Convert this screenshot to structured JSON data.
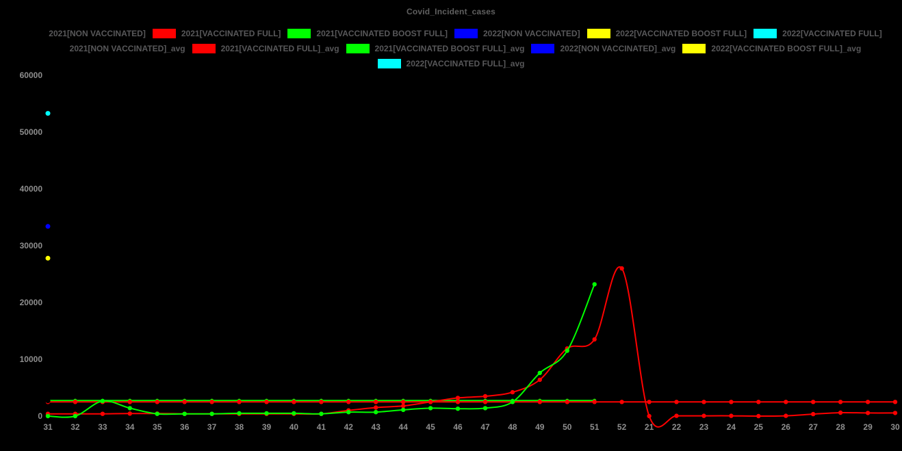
{
  "chart_data": {
    "type": "line",
    "title": "Covid_Incident_cases",
    "background_color": "#000000",
    "xlabel": "",
    "ylabel": "",
    "ylim": [
      0,
      60000
    ],
    "y_ticks": [
      0,
      10000,
      20000,
      30000,
      40000,
      50000,
      60000
    ],
    "grid": "off",
    "x_categories": [
      "31",
      "32",
      "33",
      "34",
      "35",
      "36",
      "37",
      "38",
      "39",
      "40",
      "41",
      "42",
      "43",
      "44",
      "45",
      "46",
      "47",
      "48",
      "49",
      "50",
      "51",
      "52",
      "21",
      "22",
      "23",
      "24",
      "25",
      "26",
      "27",
      "28",
      "29",
      "30"
    ],
    "legend_position": "top",
    "legend_rows": [
      [
        {
          "label": "2021[NON VACCINATED]",
          "color": "#000000"
        },
        {
          "label": "2021[VACCINATED FULL]",
          "color": "#ff0000"
        },
        {
          "label": "2021[VACCINATED BOOST FULL]",
          "color": "#00ff00"
        },
        {
          "label": "2022[NON VACCINATED]",
          "color": "#0000ff"
        },
        {
          "label": "2022[VACCINATED BOOST FULL]",
          "color": "#ffff00"
        },
        {
          "label": "2022[VACCINATED FULL]",
          "color": "#00ffff"
        }
      ],
      [
        {
          "label": "2021[NON VACCINATED]_avg",
          "color": "#000000"
        },
        {
          "label": "2021[VACCINATED FULL]_avg",
          "color": "#ff0000"
        },
        {
          "label": "2021[VACCINATED BOOST FULL]_avg",
          "color": "#00ff00"
        },
        {
          "label": "2022[NON VACCINATED]_avg",
          "color": "#0000ff"
        },
        {
          "label": "2022[VACCINATED BOOST FULL]_avg",
          "color": "#ffff00"
        }
      ],
      [
        {
          "label": "2022[VACCINATED FULL]_avg",
          "color": "#00ffff"
        }
      ]
    ],
    "series": [
      {
        "name": "2021[VACCINATED BOOST FULL]_avg",
        "color": "#00ff00",
        "role": "average-line",
        "dot_radius": 2.6,
        "values": [
          2750,
          2750,
          2750,
          2750,
          2750,
          2750,
          2750,
          2750,
          2750,
          2750,
          2750,
          2750,
          2750,
          2750,
          2750,
          2750,
          2750,
          2750,
          2750,
          2750,
          2750,
          null,
          null,
          null,
          null,
          null,
          null,
          null,
          null,
          null,
          null,
          null
        ]
      },
      {
        "name": "2021[VACCINATED FULL]_avg",
        "color": "#ff0000",
        "role": "average-line",
        "dot_radius": 3.2,
        "values": [
          2500,
          2500,
          2500,
          2500,
          2500,
          2500,
          2500,
          2500,
          2500,
          2500,
          2500,
          2500,
          2500,
          2500,
          2500,
          2500,
          2500,
          2500,
          2500,
          2500,
          2500,
          2500,
          2500,
          2500,
          2500,
          2500,
          2500,
          2500,
          2500,
          2500,
          2500,
          2500
        ]
      },
      {
        "name": "2021[NON VACCINATED]_avg",
        "color": "#000000",
        "role": "average-line-dark-dot",
        "dot_radius": 3.6,
        "values": [
          2700,
          null,
          null,
          null,
          null,
          null,
          null,
          null,
          null,
          null,
          null,
          null,
          null,
          null,
          null,
          null,
          null,
          null,
          null,
          null,
          null,
          null,
          null,
          null,
          null,
          null,
          null,
          null,
          null,
          null,
          null,
          null
        ]
      },
      {
        "name": "2021[VACCINATED FULL]",
        "color": "#ff0000",
        "role": "weekly-cases",
        "dot_radius": 3.2,
        "values": [
          400,
          400,
          400,
          450,
          450,
          400,
          400,
          400,
          400,
          400,
          400,
          1000,
          1500,
          1800,
          2500,
          3200,
          3500,
          4200,
          6400,
          11900,
          13500,
          26000,
          0,
          50,
          50,
          50,
          0,
          50,
          350,
          600,
          550,
          550
        ]
      },
      {
        "name": "2021[VACCINATED BOOST FULL]",
        "color": "#00ff00",
        "role": "weekly-cases",
        "dot_radius": 3.2,
        "values": [
          0,
          0,
          2650,
          1400,
          400,
          400,
          400,
          500,
          500,
          500,
          400,
          700,
          700,
          1100,
          1400,
          1300,
          1400,
          2500,
          7600,
          11500,
          23200,
          null,
          null,
          null,
          null,
          null,
          null,
          null,
          null,
          null,
          null,
          null
        ]
      },
      {
        "name": "2022[NON VACCINATED]",
        "color": "#0000ff",
        "role": "weekly-cases",
        "dot_radius": 3.5,
        "values": [
          33400,
          null,
          null,
          null,
          null,
          null,
          null,
          null,
          null,
          null,
          null,
          null,
          null,
          null,
          null,
          null,
          null,
          null,
          null,
          null,
          null,
          null,
          null,
          null,
          null,
          null,
          null,
          null,
          null,
          null,
          null,
          null
        ]
      },
      {
        "name": "2022[VACCINATED BOOST FULL]",
        "color": "#ffff00",
        "role": "weekly-cases",
        "dot_radius": 3.5,
        "values": [
          27800,
          null,
          null,
          null,
          null,
          null,
          null,
          null,
          null,
          null,
          null,
          null,
          null,
          null,
          null,
          null,
          null,
          null,
          null,
          null,
          null,
          null,
          null,
          null,
          null,
          null,
          null,
          null,
          null,
          null,
          null,
          null
        ]
      },
      {
        "name": "2022[VACCINATED FULL]",
        "color": "#00ffff",
        "role": "weekly-cases",
        "dot_radius": 3.5,
        "values": [
          53300,
          null,
          null,
          null,
          null,
          null,
          null,
          null,
          null,
          null,
          null,
          null,
          null,
          null,
          null,
          null,
          null,
          null,
          null,
          null,
          null,
          null,
          null,
          null,
          null,
          null,
          null,
          null,
          null,
          null,
          null,
          null
        ]
      }
    ],
    "notes": "2021[NON VACCINATED] series renders black on black background (legend swatch appears empty)."
  },
  "axis_style": {
    "label_color": "#8f8f8f"
  },
  "title_style": {
    "color": "#606060"
  }
}
